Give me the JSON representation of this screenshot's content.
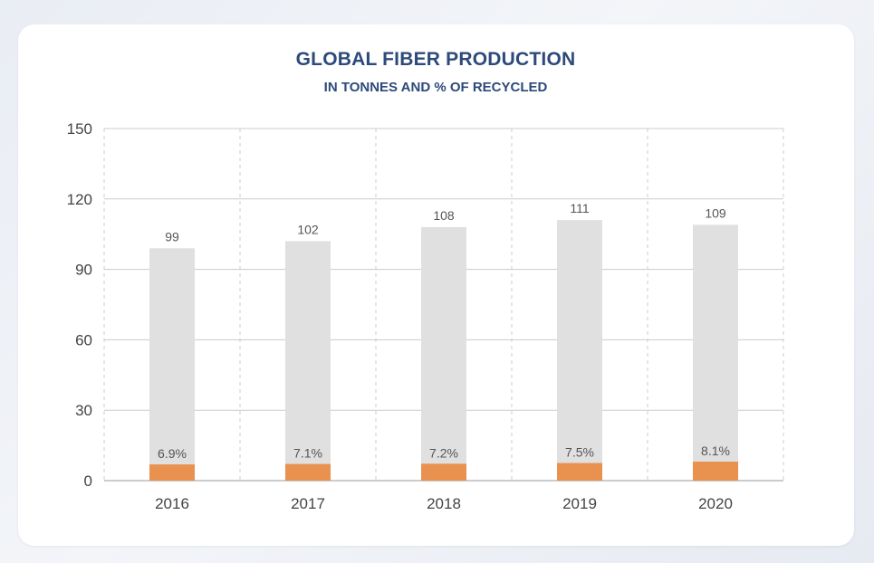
{
  "chart_data": {
    "type": "bar",
    "title": "GLOBAL FIBER PRODUCTION",
    "subtitle": "IN TONNES AND % OF RECYCLED",
    "categories": [
      "2016",
      "2017",
      "2018",
      "2019",
      "2020"
    ],
    "series": [
      {
        "values": [
          99,
          102,
          108,
          111,
          109
        ],
        "labels": [
          "99",
          "102",
          "108",
          "111",
          "109"
        ],
        "color": "#e0e0e0"
      },
      {
        "values": [
          6.9,
          7.1,
          7.2,
          7.5,
          8.1
        ],
        "labels": [
          "6.9%",
          "7.1%",
          "7.2%",
          "7.5%",
          "8.1%"
        ],
        "color": "#e9914f"
      }
    ],
    "yticks": [
      "0",
      "30",
      "60",
      "90",
      "120",
      "150"
    ],
    "ylim": [
      0,
      150
    ],
    "grid": true,
    "colors": {
      "title": "#2d4a7a",
      "gridline": "#cccccc",
      "axis": "#999999"
    }
  }
}
